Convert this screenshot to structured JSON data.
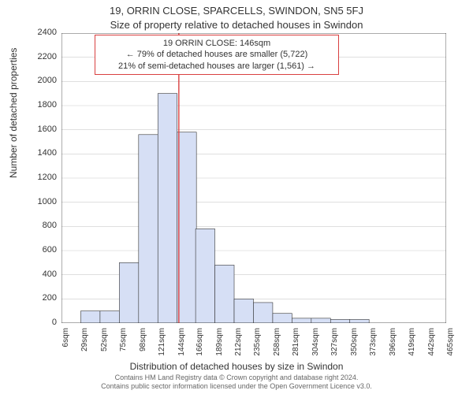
{
  "title_line1": "19, ORRIN CLOSE, SPARCELLS, SWINDON, SN5 5FJ",
  "title_line2": "Size of property relative to detached houses in Swindon",
  "annotation": {
    "line1": "19 ORRIN CLOSE: 146sqm",
    "line2": "← 79% of detached houses are smaller (5,722)",
    "line3": "21% of semi-detached houses are larger (1,561) →",
    "border_color": "#d94040"
  },
  "chart": {
    "type": "histogram",
    "xlabel": "Distribution of detached houses by size in Swindon",
    "ylabel": "Number of detached properties",
    "ylim": [
      0,
      2400
    ],
    "ytick_step": 200,
    "xticks": [
      6,
      29,
      52,
      75,
      98,
      121,
      144,
      166,
      189,
      212,
      235,
      258,
      281,
      304,
      327,
      350,
      373,
      396,
      419,
      442,
      465
    ],
    "xtick_unit": "sqm",
    "bins": [
      {
        "x": 6,
        "count": 0
      },
      {
        "x": 29,
        "count": 100
      },
      {
        "x": 52,
        "count": 100
      },
      {
        "x": 75,
        "count": 500
      },
      {
        "x": 98,
        "count": 1560
      },
      {
        "x": 121,
        "count": 1900
      },
      {
        "x": 144,
        "count": 1580
      },
      {
        "x": 166,
        "count": 780
      },
      {
        "x": 189,
        "count": 480
      },
      {
        "x": 212,
        "count": 200
      },
      {
        "x": 235,
        "count": 170
      },
      {
        "x": 258,
        "count": 80
      },
      {
        "x": 281,
        "count": 40
      },
      {
        "x": 304,
        "count": 40
      },
      {
        "x": 327,
        "count": 30
      },
      {
        "x": 350,
        "count": 30
      },
      {
        "x": 373,
        "count": 0
      },
      {
        "x": 396,
        "count": 0
      },
      {
        "x": 419,
        "count": 0
      },
      {
        "x": 442,
        "count": 0
      },
      {
        "x": 465,
        "count": 0
      }
    ],
    "bar_fill": "#d6dff5",
    "bar_stroke": "#333333",
    "bar_stroke_width": 0.6,
    "grid_color": "#cccccc",
    "axis_color": "#333333",
    "spine_color": "#333333",
    "background_color": "#ffffff",
    "marker_line_x": 146,
    "marker_line_color": "#d94040",
    "marker_line_width": 1.4
  },
  "footnote_line1": "Contains HM Land Registry data © Crown copyright and database right 2024.",
  "footnote_line2": "Contains public sector information licensed under the Open Government Licence v3.0."
}
